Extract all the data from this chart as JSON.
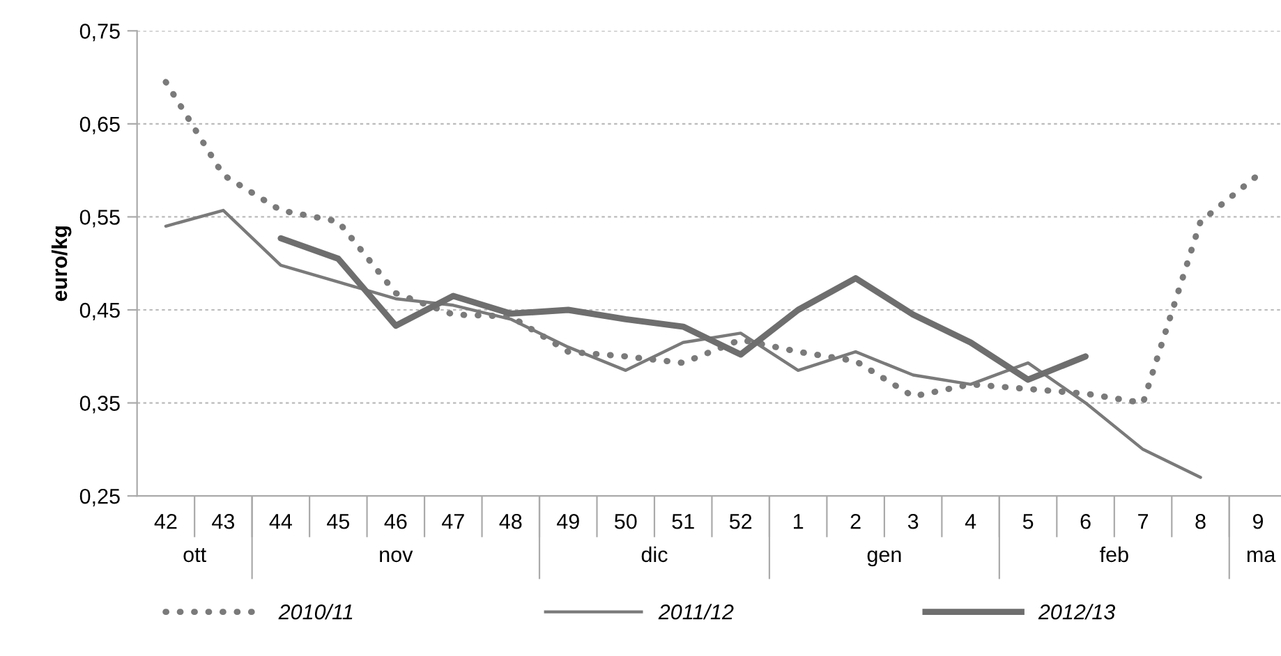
{
  "chart_data": {
    "type": "line",
    "ylabel": "euro/kg",
    "categories": [
      "42",
      "43",
      "44",
      "45",
      "46",
      "47",
      "48",
      "49",
      "50",
      "51",
      "52",
      "1",
      "2",
      "3",
      "4",
      "5",
      "6",
      "7",
      "8",
      "9"
    ],
    "series": [
      {
        "name": "2010/11",
        "color": "#7a7a7a",
        "line_style": "dotted",
        "values": [
          0.695,
          0.595,
          0.557,
          0.545,
          0.468,
          0.445,
          0.443,
          0.405,
          0.4,
          0.393,
          0.418,
          0.405,
          0.395,
          0.357,
          0.37,
          0.365,
          0.36,
          0.35,
          0.545,
          0.595
        ]
      },
      {
        "name": "2011/12",
        "color": "#7a7a7a",
        "line_style": "solid",
        "values": [
          0.54,
          0.557,
          0.498,
          0.48,
          0.462,
          0.455,
          0.44,
          0.41,
          0.385,
          0.415,
          0.425,
          0.385,
          0.405,
          0.38,
          0.37,
          0.393,
          0.35,
          0.3,
          0.27,
          null
        ]
      },
      {
        "name": "2012/13",
        "color": "#6e6e6e",
        "line_style": "solid",
        "values": [
          null,
          null,
          0.527,
          0.505,
          0.433,
          0.465,
          0.446,
          0.45,
          0.44,
          0.432,
          0.402,
          0.45,
          0.484,
          0.445,
          0.415,
          0.375,
          0.4,
          null,
          null,
          null
        ]
      }
    ],
    "ylim": [
      0.25,
      0.75
    ],
    "yticks": [
      {
        "value": 0.25,
        "label": "0,25"
      },
      {
        "value": 0.35,
        "label": "0,35"
      },
      {
        "value": 0.45,
        "label": "0,45"
      },
      {
        "value": 0.55,
        "label": "0,55"
      },
      {
        "value": 0.65,
        "label": "0,65"
      },
      {
        "value": 0.75,
        "label": "0,75"
      }
    ],
    "grid": "y",
    "legend": "bottom",
    "annotations": [
      "ott",
      "nov",
      "dic",
      "gen",
      "feb",
      "ma"
    ]
  }
}
